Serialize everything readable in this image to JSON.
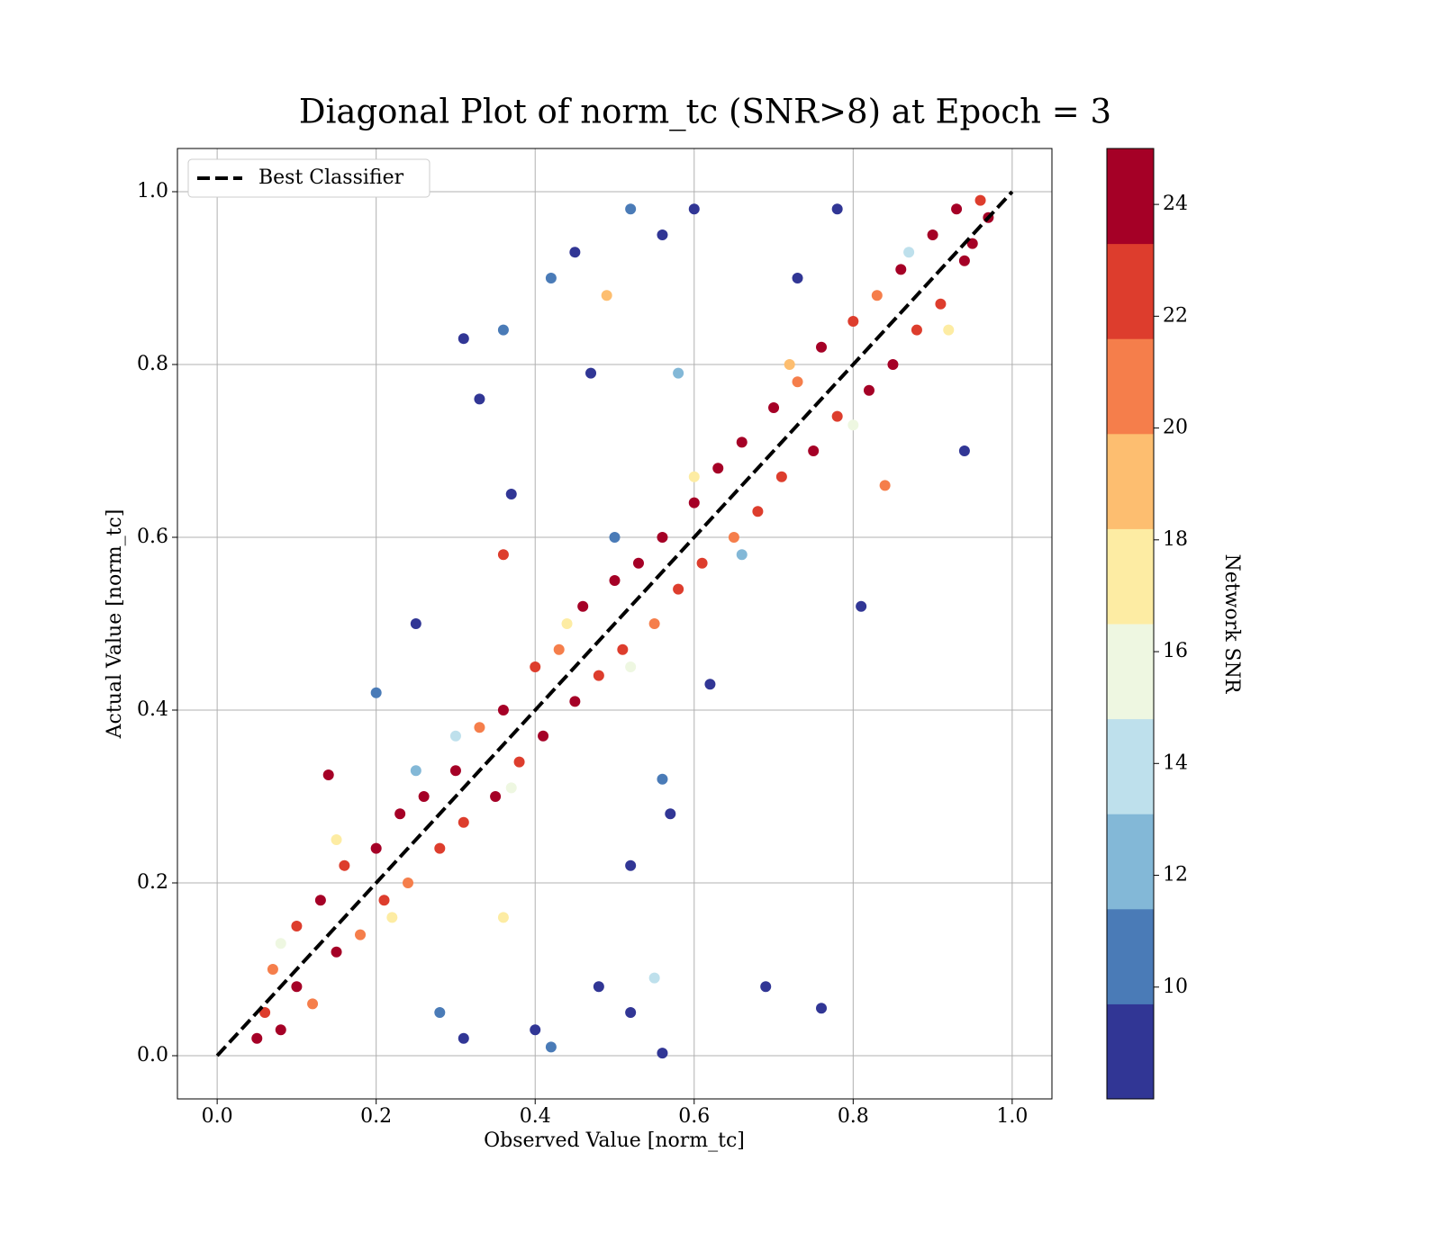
{
  "chart_data": {
    "type": "scatter",
    "title": "Diagonal Plot of norm_tc (SNR>8) at Epoch = 3",
    "x_label": "Observed Value [norm_tc]",
    "y_label": "Actual Value [norm_tc]",
    "colorbar_label": "Network SNR",
    "xlim": [
      -0.05,
      1.05
    ],
    "ylim": [
      -0.05,
      1.05
    ],
    "xticks": [
      {
        "value": 0,
        "label": "0.0"
      },
      0.2,
      0.4,
      0.6,
      0.8,
      {
        "value": 1,
        "label": "1.0"
      }
    ],
    "yticks": [
      {
        "value": 0,
        "label": "0.0"
      },
      0.2,
      0.4,
      0.6,
      0.8,
      {
        "value": 1,
        "label": "1.0"
      }
    ],
    "clim": [
      8,
      25
    ],
    "cticks": [
      10,
      12,
      14,
      16,
      18,
      20,
      22,
      24
    ],
    "colormap": [
      "#313695",
      "#4a7bb7",
      "#83b8d7",
      "#bee0ec",
      "#eef7e1",
      "#fdeca3",
      "#fdbe70",
      "#f57e4b",
      "#dd3d2d",
      "#a50026"
    ],
    "grid": true,
    "legend": "upper left",
    "reference_line": {
      "name": "Best Classifier",
      "color": "#000000",
      "x": [
        0,
        1
      ],
      "y": [
        0,
        1
      ]
    },
    "x": [
      0.05,
      0.06,
      0.08,
      0.07,
      0.1,
      0.1,
      0.12,
      0.13,
      0.15,
      0.16,
      0.18,
      0.2,
      0.21,
      0.23,
      0.24,
      0.26,
      0.28,
      0.3,
      0.31,
      0.33,
      0.35,
      0.36,
      0.38,
      0.4,
      0.41,
      0.43,
      0.45,
      0.46,
      0.48,
      0.5,
      0.51,
      0.53,
      0.55,
      0.56,
      0.58,
      0.6,
      0.61,
      0.63,
      0.65,
      0.66,
      0.68,
      0.7,
      0.71,
      0.73,
      0.75,
      0.76,
      0.78,
      0.8,
      0.82,
      0.83,
      0.85,
      0.86,
      0.88,
      0.9,
      0.91,
      0.93,
      0.94,
      0.96,
      0.95,
      0.97,
      0.08,
      0.15,
      0.22,
      0.3,
      0.37,
      0.44,
      0.52,
      0.6,
      0.66,
      0.72,
      0.8,
      0.87,
      0.92,
      0.25,
      0.5,
      0.31,
      0.33,
      0.36,
      0.45,
      0.42,
      0.49,
      0.52,
      0.56,
      0.6,
      0.47,
      0.58,
      0.37,
      0.36,
      0.81,
      0.94,
      0.84,
      0.69,
      0.76,
      0.55,
      0.56,
      0.48,
      0.52,
      0.31,
      0.42,
      0.14,
      0.2,
      0.25,
      0.57,
      0.56,
      0.52,
      0.36,
      0.62,
      0.4,
      0.28,
      0.73,
      0.78
    ],
    "values": [
      0.02,
      0.05,
      0.03,
      0.1,
      0.08,
      0.15,
      0.06,
      0.18,
      0.12,
      0.22,
      0.14,
      0.24,
      0.18,
      0.28,
      0.2,
      0.3,
      0.24,
      0.33,
      0.27,
      0.38,
      0.3,
      0.4,
      0.34,
      0.45,
      0.37,
      0.47,
      0.41,
      0.52,
      0.44,
      0.55,
      0.47,
      0.57,
      0.5,
      0.6,
      0.54,
      0.64,
      0.57,
      0.68,
      0.6,
      0.71,
      0.63,
      0.75,
      0.67,
      0.78,
      0.7,
      0.82,
      0.74,
      0.85,
      0.77,
      0.88,
      0.8,
      0.91,
      0.84,
      0.95,
      0.87,
      0.98,
      0.92,
      0.99,
      0.94,
      0.97,
      0.13,
      0.25,
      0.16,
      0.37,
      0.31,
      0.5,
      0.45,
      0.67,
      0.58,
      0.8,
      0.73,
      0.93,
      0.84,
      0.33,
      0.6,
      0.83,
      0.76,
      0.84,
      0.93,
      0.9,
      0.88,
      0.98,
      0.95,
      0.98,
      0.79,
      0.79,
      0.65,
      0.58,
      0.52,
      0.7,
      0.66,
      0.08,
      0.055,
      0.09,
      0.003,
      0.08,
      0.05,
      0.02,
      0.01,
      0.325,
      0.42,
      0.5,
      0.28,
      0.32,
      0.22,
      0.16,
      0.43,
      0.03,
      0.05,
      0.9,
      0.98
    ],
    "color_values": [
      24,
      22,
      24,
      20,
      24,
      23,
      21,
      24,
      24,
      22,
      20,
      24,
      23,
      24,
      21,
      24,
      22,
      24,
      23,
      20,
      24,
      24,
      22,
      23,
      24,
      21,
      24,
      24,
      22,
      24,
      23,
      24,
      20,
      24,
      22,
      24,
      23,
      24,
      21,
      24,
      22,
      24,
      23,
      20,
      24,
      24,
      22,
      23,
      24,
      21,
      24,
      24,
      22,
      24,
      23,
      24,
      24,
      22,
      24,
      24,
      15,
      17,
      18,
      14,
      16,
      18,
      15,
      17,
      13,
      19,
      16,
      14,
      18,
      12,
      11,
      9,
      9,
      11,
      9,
      10,
      19,
      10,
      9,
      9,
      9,
      12,
      9,
      22,
      9,
      9,
      20,
      9,
      9,
      14,
      9,
      9,
      9,
      9,
      10,
      24,
      10,
      9,
      9,
      11,
      9,
      17,
      9,
      9,
      11,
      9,
      9
    ]
  }
}
